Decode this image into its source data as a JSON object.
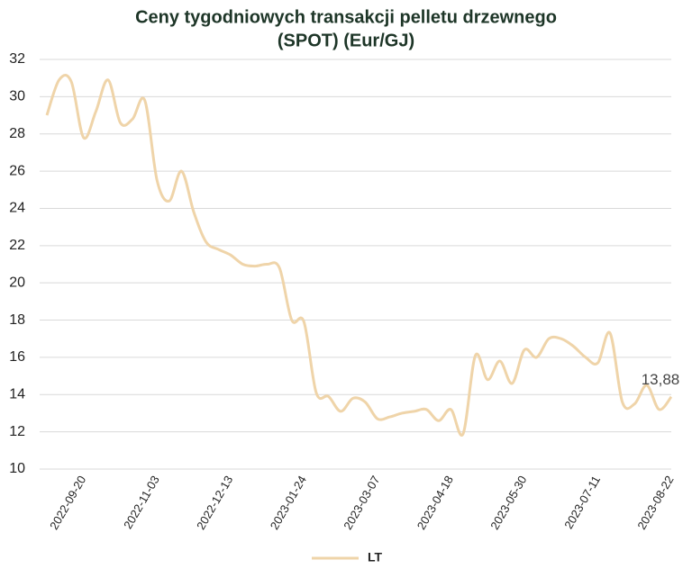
{
  "chart_data": {
    "type": "line",
    "title": [
      "Ceny tygodniowych transakcji pelletu drzewnego",
      "(SPOT) (Eur/GJ)"
    ],
    "categories": [
      null,
      null,
      null,
      "2022-09-20",
      null,
      null,
      null,
      null,
      null,
      "2022-11-03",
      null,
      null,
      null,
      null,
      null,
      "2022-12-13",
      null,
      null,
      null,
      null,
      null,
      "2023-01-24",
      null,
      null,
      null,
      null,
      null,
      "2023-03-07",
      null,
      null,
      null,
      null,
      null,
      "2023-04-18",
      null,
      null,
      null,
      null,
      null,
      "2023-05-30",
      null,
      null,
      null,
      null,
      null,
      "2023-07-11",
      null,
      null,
      null,
      null,
      null,
      "2023-08-22"
    ],
    "series": [
      {
        "name": "LT",
        "color": "#efd4a9",
        "values": [
          29,
          30.9,
          30.8,
          27.8,
          29.2,
          30.9,
          28.6,
          28.8,
          29.8,
          25.5,
          24.4,
          26.0,
          23.8,
          22.2,
          21.8,
          21.5,
          21.0,
          20.9,
          21.0,
          20.8,
          18.0,
          17.9,
          14.1,
          13.9,
          13.1,
          13.8,
          13.6,
          12.7,
          12.8,
          13.0,
          13.1,
          13.2,
          12.6,
          13.2,
          11.9,
          16.1,
          14.8,
          15.8,
          14.6,
          16.4,
          16.0,
          17.0,
          17.0,
          16.6,
          16.0,
          15.7,
          17.3,
          13.6,
          13.5,
          14.5,
          13.2,
          13.88
        ],
        "value_labels": [
          null,
          null,
          null,
          null,
          null,
          null,
          null,
          null,
          null,
          null,
          null,
          null,
          null,
          null,
          null,
          null,
          null,
          null,
          null,
          null,
          null,
          null,
          null,
          null,
          null,
          null,
          null,
          null,
          null,
          null,
          null,
          null,
          null,
          null,
          null,
          null,
          null,
          null,
          null,
          null,
          null,
          null,
          null,
          null,
          null,
          null,
          null,
          null,
          null,
          null,
          null,
          "13,88"
        ]
      }
    ],
    "ylim": [
      10,
      32
    ],
    "yticks": [
      10,
      12,
      14,
      16,
      18,
      20,
      22,
      24,
      26,
      28,
      30,
      32
    ],
    "grid": true,
    "legend": "bottom"
  }
}
